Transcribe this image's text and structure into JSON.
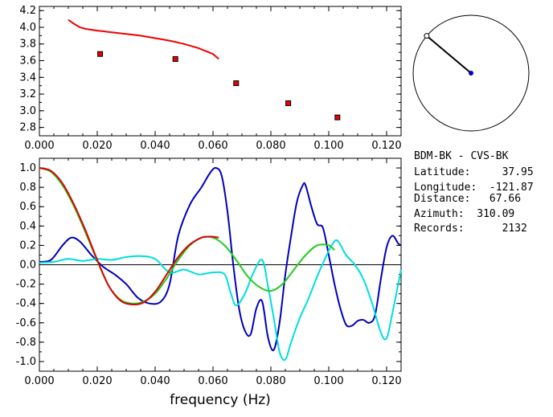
{
  "chart_data": [
    {
      "type": "scatter",
      "xlim": [
        0.0,
        0.125
      ],
      "ylim": [
        2.7,
        4.25
      ],
      "xticks": [
        "0.000",
        "0.020",
        "0.040",
        "0.060",
        "0.080",
        "0.100",
        "0.120"
      ],
      "yticks": [
        "2.8",
        "3.0",
        "3.2",
        "3.4",
        "3.6",
        "3.8",
        "4.0",
        "4.2"
      ],
      "series": [
        {
          "color": "#ee0000",
          "style": "line",
          "x": [
            0.01,
            0.012,
            0.014,
            0.016,
            0.02,
            0.025,
            0.03,
            0.035,
            0.04,
            0.045,
            0.05,
            0.055,
            0.06,
            0.062
          ],
          "y": [
            4.09,
            4.04,
            4.0,
            3.98,
            3.96,
            3.94,
            3.92,
            3.9,
            3.87,
            3.84,
            3.8,
            3.75,
            3.68,
            3.62
          ]
        },
        {
          "color": "#ee0000",
          "style": "markers",
          "x": [
            0.021,
            0.047,
            0.068,
            0.086,
            0.103
          ],
          "y": [
            3.68,
            3.62,
            3.33,
            3.09,
            2.92
          ]
        }
      ]
    },
    {
      "type": "line",
      "xlabel": "frequency (Hz)",
      "xlim": [
        0.0,
        0.125
      ],
      "ylim": [
        -1.1,
        1.1
      ],
      "xticks": [
        "0.000",
        "0.020",
        "0.040",
        "0.060",
        "0.080",
        "0.100",
        "0.120"
      ],
      "yticks": [
        "1.0",
        "0.8",
        "0.6",
        "0.4",
        "0.2",
        "0.0",
        "-0.2",
        "-0.4",
        "-0.6",
        "-0.8",
        "-1.0"
      ],
      "series": [
        {
          "color": "#0000bb",
          "x": [
            0.0,
            0.004,
            0.008,
            0.011,
            0.014,
            0.018,
            0.022,
            0.026,
            0.03,
            0.034,
            0.038,
            0.042,
            0.045,
            0.048,
            0.052,
            0.056,
            0.059,
            0.061,
            0.063,
            0.065,
            0.067,
            0.069,
            0.071,
            0.073,
            0.075,
            0.077,
            0.079,
            0.081,
            0.083,
            0.085,
            0.087,
            0.089,
            0.091,
            0.092,
            0.094,
            0.096,
            0.098,
            0.1,
            0.102,
            0.104,
            0.106,
            0.108,
            0.11,
            0.112,
            0.114,
            0.116,
            0.118,
            0.12,
            0.122,
            0.124,
            0.125
          ],
          "y": [
            0.03,
            0.05,
            0.2,
            0.28,
            0.24,
            0.1,
            -0.02,
            -0.1,
            -0.2,
            -0.34,
            -0.4,
            -0.38,
            -0.2,
            0.3,
            0.62,
            0.8,
            0.95,
            1.0,
            0.92,
            0.55,
            0.0,
            -0.45,
            -0.68,
            -0.72,
            -0.45,
            -0.38,
            -0.75,
            -0.88,
            -0.6,
            -0.1,
            0.3,
            0.65,
            0.82,
            0.82,
            0.6,
            0.42,
            0.38,
            0.1,
            -0.2,
            -0.45,
            -0.62,
            -0.63,
            -0.58,
            -0.57,
            -0.6,
            -0.52,
            -0.15,
            0.18,
            0.3,
            0.22,
            0.2
          ]
        },
        {
          "color": "#00dddd",
          "x": [
            0.0,
            0.005,
            0.01,
            0.015,
            0.02,
            0.025,
            0.03,
            0.035,
            0.04,
            0.045,
            0.05,
            0.055,
            0.06,
            0.064,
            0.066,
            0.068,
            0.071,
            0.074,
            0.077,
            0.079,
            0.081,
            0.083,
            0.085,
            0.087,
            0.09,
            0.093,
            0.096,
            0.099,
            0.101,
            0.103,
            0.106,
            0.109,
            0.112,
            0.115,
            0.118,
            0.12,
            0.122,
            0.125
          ],
          "y": [
            0.02,
            0.03,
            0.06,
            0.04,
            0.06,
            0.05,
            0.08,
            0.09,
            0.06,
            -0.08,
            -0.05,
            -0.1,
            -0.08,
            -0.1,
            -0.28,
            -0.42,
            -0.3,
            -0.08,
            0.05,
            -0.22,
            -0.55,
            -0.9,
            -0.98,
            -0.8,
            -0.55,
            -0.35,
            -0.12,
            0.08,
            0.2,
            0.25,
            0.1,
            0.0,
            -0.15,
            -0.4,
            -0.7,
            -0.76,
            -0.5,
            -0.05
          ]
        },
        {
          "color": "#22cc22",
          "x": [
            0.0,
            0.004,
            0.008,
            0.012,
            0.016,
            0.02,
            0.024,
            0.028,
            0.032,
            0.036,
            0.04,
            0.044,
            0.048,
            0.052,
            0.056,
            0.06,
            0.064,
            0.068,
            0.072,
            0.076,
            0.08,
            0.084,
            0.088,
            0.092,
            0.096,
            0.1,
            0.102
          ],
          "y": [
            1.0,
            0.96,
            0.82,
            0.6,
            0.33,
            0.04,
            -0.22,
            -0.36,
            -0.4,
            -0.38,
            -0.3,
            -0.14,
            0.05,
            0.2,
            0.28,
            0.28,
            0.2,
            0.05,
            -0.12,
            -0.23,
            -0.27,
            -0.2,
            -0.05,
            0.1,
            0.2,
            0.2,
            0.15
          ]
        },
        {
          "color": "#dd0000",
          "x": [
            0.0,
            0.004,
            0.008,
            0.012,
            0.016,
            0.02,
            0.024,
            0.028,
            0.032,
            0.036,
            0.04,
            0.044,
            0.048,
            0.052,
            0.056,
            0.058,
            0.06,
            0.062
          ],
          "y": [
            1.0,
            0.97,
            0.84,
            0.62,
            0.35,
            0.05,
            -0.22,
            -0.37,
            -0.41,
            -0.39,
            -0.28,
            -0.1,
            0.08,
            0.21,
            0.28,
            0.29,
            0.29,
            0.28
          ]
        }
      ]
    }
  ],
  "polar": {
    "azimuth_deg": 310.09,
    "needle_color": "#000000",
    "center_color": "#0000bb"
  },
  "info": {
    "pair": "BDM-BK  -  CVS-BK",
    "rows": [
      "Latitude:     37.95",
      "Longitude:  -121.87",
      "Distance:   67.66",
      "Azimuth:  310.09",
      "Records:      2132"
    ]
  }
}
